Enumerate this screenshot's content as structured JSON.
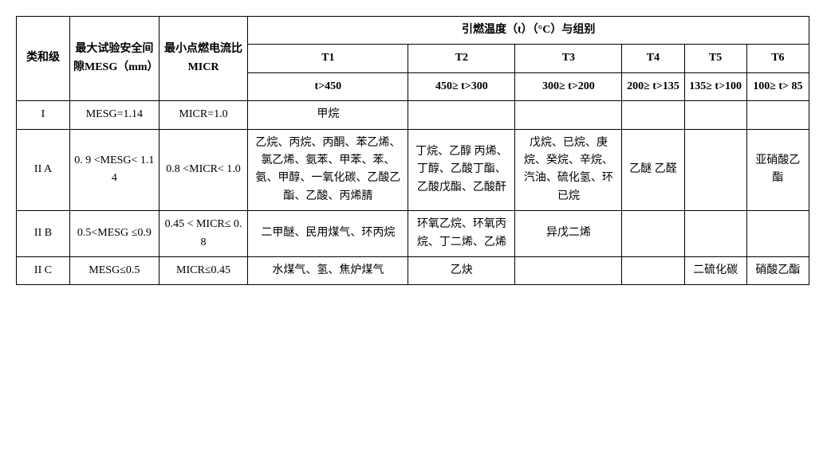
{
  "header": {
    "class_level": "类和级",
    "mesg_header": "最大试验安全间隙MESG（mm）",
    "micr_header": "最小点燃电流比 MICR",
    "temp_header": "引燃温度（t）（°C）与组别",
    "t_labels": [
      "T1",
      "T2",
      "T3",
      "T4",
      "T5",
      "T6"
    ],
    "t_ranges": [
      "t>450",
      "450≥ t>300",
      "300≥ t>200",
      "200≥ t>135",
      "135≥ t>100",
      "100≥ t> 85"
    ]
  },
  "rows": [
    {
      "class": "I",
      "mesg": "MESG=1.14",
      "micr": "MICR=1.0",
      "t1": "甲烷",
      "t2": "",
      "t3": "",
      "t4": "",
      "t5": "",
      "t6": ""
    },
    {
      "class": "II A",
      "mesg": "0. 9 <MESG< 1.14",
      "micr": "0.8 <MICR< 1.0",
      "t1": "乙烷、丙烷、丙酮、苯乙烯、氯乙烯、氨苯、甲苯、苯、氨、甲醇、一氧化碳、乙酸乙酯、乙酸、丙烯腈",
      "t2": "丁烷、乙醇 丙烯、丁醇、乙酸丁酯、乙酸戊酯、乙酸酐",
      "t3": "戊烷、已烷、庚烷、癸烷、辛烷、汽油、硫化氢、环已烷",
      "t4": "乙醚 乙醛",
      "t5": "",
      "t6": "亚硝酸乙酯"
    },
    {
      "class": "II B",
      "mesg": "0.5<MESG ≤0.9",
      "micr": "0.45 < MICR≤ 0.8",
      "t1": "二甲醚、民用煤气、环丙烷",
      "t2": "环氧乙烷、环氧丙烷、丁二烯、乙烯",
      "t3": "异戊二烯",
      "t4": "",
      "t5": "",
      "t6": ""
    },
    {
      "class": "II C",
      "mesg": "MESG≤0.5",
      "micr": "MICR≤0.45",
      "t1": "水煤气、氢、焦炉煤气",
      "t2": "乙炔",
      "t3": "",
      "t4": "",
      "t5": "二硫化碳",
      "t6": "硝酸乙酯"
    }
  ],
  "style": {
    "font_family": "SimSun",
    "font_size_pt": 10.5,
    "border_color": "#000000",
    "background_color": "#ffffff",
    "text_color": "#000000"
  }
}
